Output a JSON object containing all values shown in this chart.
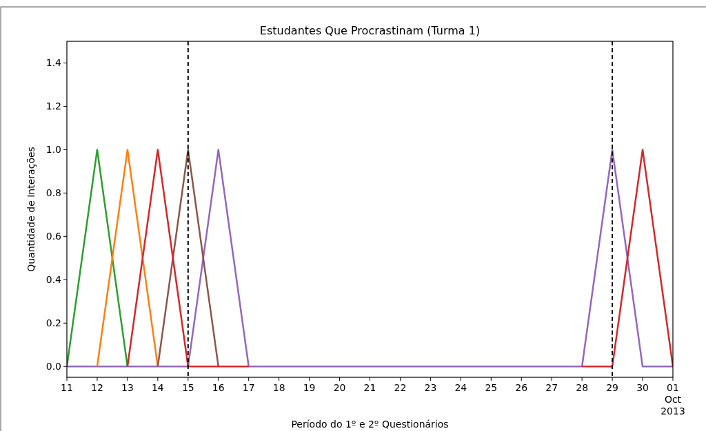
{
  "chart_data": {
    "type": "line",
    "title": "Estudantes Que Procrastinam (Turma 1)",
    "xlabel": "Período do 1º e 2º Questionários",
    "ylabel": "Quantidade de Interações",
    "x": [
      "2013-09-11",
      "2013-09-12",
      "2013-09-13",
      "2013-09-14",
      "2013-09-15",
      "2013-09-16",
      "2013-09-17",
      "2013-09-18",
      "2013-09-19",
      "2013-09-20",
      "2013-09-21",
      "2013-09-22",
      "2013-09-23",
      "2013-09-24",
      "2013-09-25",
      "2013-09-26",
      "2013-09-27",
      "2013-09-28",
      "2013-09-29",
      "2013-09-30",
      "2013-10-01"
    ],
    "series": [
      {
        "color": "#9467bd",
        "values": [
          0,
          0,
          0,
          0,
          0,
          1,
          0,
          0,
          0,
          0,
          0,
          0,
          0,
          0,
          0,
          0,
          0,
          0,
          1,
          0,
          0
        ]
      },
      {
        "color": "#2ca02c",
        "values": [
          0,
          1,
          0,
          null,
          null,
          null,
          null,
          null,
          null,
          null,
          null,
          null,
          null,
          null,
          null,
          null,
          null,
          null,
          null,
          null,
          null
        ]
      },
      {
        "color": "#ff7f0e",
        "values": [
          null,
          0,
          1,
          0,
          null,
          null,
          null,
          null,
          null,
          null,
          null,
          null,
          null,
          null,
          null,
          null,
          null,
          null,
          null,
          null,
          null
        ]
      },
      {
        "color": "#8c564b",
        "values": [
          null,
          null,
          null,
          0,
          1,
          0,
          null,
          null,
          null,
          null,
          null,
          null,
          null,
          null,
          null,
          null,
          null,
          null,
          null,
          null,
          null
        ]
      },
      {
        "color": "#d62728",
        "values": [
          null,
          null,
          0,
          1,
          0,
          0,
          0,
          null,
          null,
          null,
          null,
          null,
          null,
          null,
          null,
          null,
          null,
          0,
          0,
          1,
          0
        ]
      }
    ],
    "xlim": [
      "2013-09-11",
      "2013-10-01"
    ],
    "xticks": [
      {
        "value": "2013-09-11",
        "label": "11"
      },
      {
        "value": "2013-09-12",
        "label": "12"
      },
      {
        "value": "2013-09-13",
        "label": "13"
      },
      {
        "value": "2013-09-14",
        "label": "14"
      },
      {
        "value": "2013-09-15",
        "label": "15"
      },
      {
        "value": "2013-09-16",
        "label": "16"
      },
      {
        "value": "2013-09-17",
        "label": "17"
      },
      {
        "value": "2013-09-18",
        "label": "18"
      },
      {
        "value": "2013-09-19",
        "label": "19"
      },
      {
        "value": "2013-09-20",
        "label": "20"
      },
      {
        "value": "2013-09-21",
        "label": "21"
      },
      {
        "value": "2013-09-22",
        "label": "22"
      },
      {
        "value": "2013-09-23",
        "label": "23"
      },
      {
        "value": "2013-09-24",
        "label": "24"
      },
      {
        "value": "2013-09-25",
        "label": "25"
      },
      {
        "value": "2013-09-26",
        "label": "26"
      },
      {
        "value": "2013-09-27",
        "label": "27"
      },
      {
        "value": "2013-09-28",
        "label": "28"
      },
      {
        "value": "2013-09-29",
        "label": "29"
      },
      {
        "value": "2013-09-30",
        "label": "30"
      },
      {
        "value": "2013-10-01",
        "label": "01\nOct\n2013"
      }
    ],
    "ylim": [
      -0.05,
      1.5
    ],
    "yticks": [
      {
        "value": 0,
        "label": "0.0"
      },
      {
        "value": 0.2,
        "label": "0.2"
      },
      {
        "value": 0.4,
        "label": "0.4"
      },
      {
        "value": 0.6,
        "label": "0.6"
      },
      {
        "value": 0.8,
        "label": "0.8"
      },
      {
        "value": 1,
        "label": "1.0"
      },
      {
        "value": 1.2,
        "label": "1.2"
      },
      {
        "value": 1.4,
        "label": "1.4"
      }
    ],
    "ref_lines": [
      {
        "axis": "x",
        "value": "2013-09-15",
        "color": "#000000",
        "line_style": "dashed"
      },
      {
        "axis": "x",
        "value": "2013-09-29",
        "color": "#000000",
        "line_style": "dashed"
      }
    ],
    "grid": false,
    "marker": "none",
    "line_style": "solid"
  }
}
